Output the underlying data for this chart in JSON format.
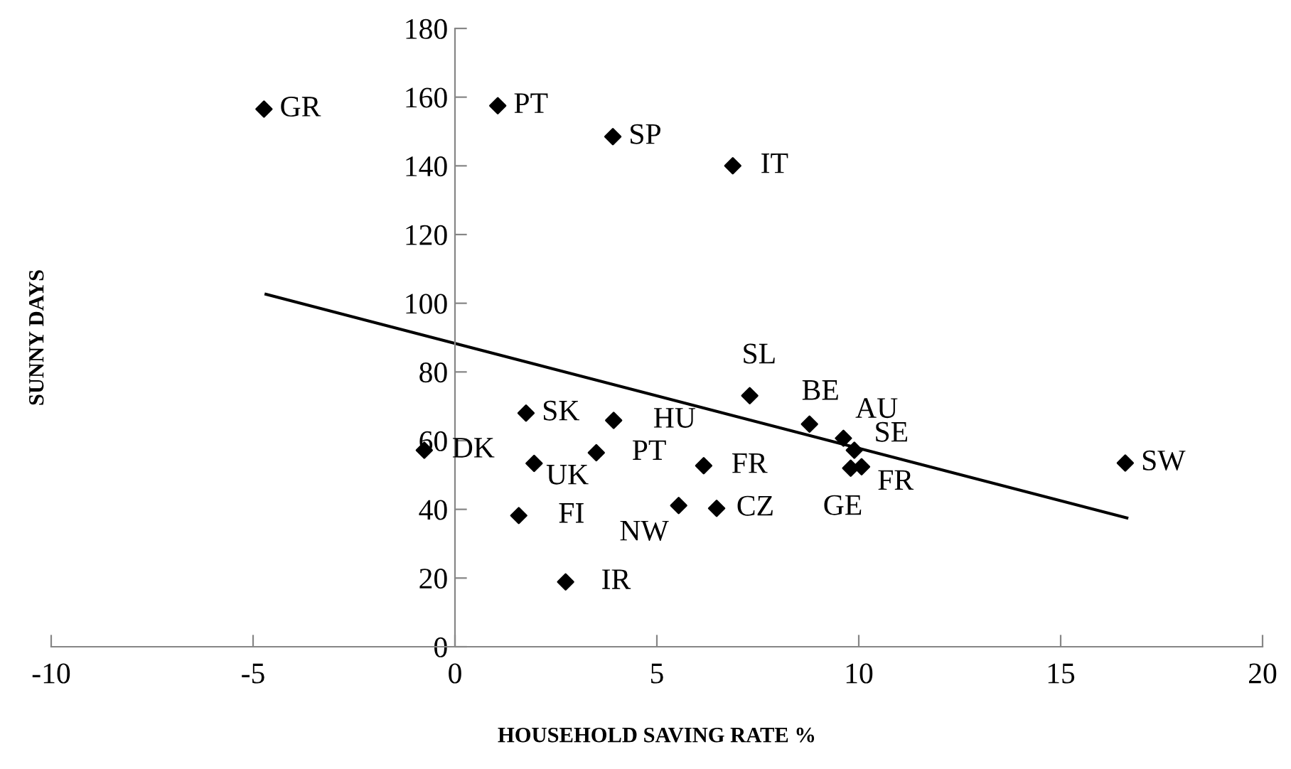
{
  "chart_data": {
    "type": "scatter",
    "xlabel": "HOUSEHOLD SAVING RATE %",
    "ylabel": "SUNNY DAYS",
    "xlim": [
      -10,
      20
    ],
    "xticks": [
      -10,
      -5,
      0,
      5,
      10,
      15,
      20
    ],
    "ylim": [
      0,
      180
    ],
    "yticks": [
      0,
      20,
      40,
      60,
      80,
      100,
      120,
      140,
      160,
      180
    ],
    "grid": false,
    "legend": false,
    "marker": "diamond",
    "series": [
      {
        "color": "#000000",
        "x": [
          -4.73,
          1.06,
          3.91,
          6.88,
          -0.76,
          1.76,
          3.93,
          1.96,
          3.5,
          6.16,
          1.58,
          5.54,
          6.48,
          2.74,
          7.3,
          8.78,
          9.62,
          9.89,
          9.8,
          10.07,
          16.6
        ],
        "values": [
          156.5,
          157.5,
          148.5,
          140,
          57.2,
          68,
          65.9,
          53.4,
          56.5,
          52.7,
          38.2,
          41.1,
          40.3,
          18.9,
          73.1,
          64.8,
          60.7,
          57.2,
          52,
          52.4,
          53.5
        ]
      },
      {
        "type": "line",
        "color": "#000000",
        "marker": "none",
        "line_style": "solid",
        "x": [
          -4.68,
          16.64
        ],
        "values": [
          102.6,
          37.5
        ]
      }
    ],
    "annotations": [
      {
        "text": "GR",
        "x": -4.73,
        "y": 156.5
      },
      {
        "text": "PT",
        "x": 1.06,
        "y": 157.5
      },
      {
        "text": "SP",
        "x": 3.91,
        "y": 148.5
      },
      {
        "text": "IT",
        "x": 6.88,
        "y": 140
      },
      {
        "text": "DK",
        "x": -0.76,
        "y": 57.2
      },
      {
        "text": "SK",
        "x": 1.76,
        "y": 68
      },
      {
        "text": "HU",
        "x": 3.93,
        "y": 65.9
      },
      {
        "text": "UK",
        "x": 1.96,
        "y": 53.4
      },
      {
        "text": "PT",
        "x": 3.5,
        "y": 56.5
      },
      {
        "text": "FR",
        "x": 6.16,
        "y": 52.7
      },
      {
        "text": "FI",
        "x": 1.58,
        "y": 38.2
      },
      {
        "text": "NW",
        "x": 5.54,
        "y": 41.1
      },
      {
        "text": "CZ",
        "x": 6.48,
        "y": 40.3
      },
      {
        "text": "IR",
        "x": 2.74,
        "y": 18.9
      },
      {
        "text": "SL",
        "x": 7.3,
        "y": 73.1
      },
      {
        "text": "BE",
        "x": 8.78,
        "y": 64.8
      },
      {
        "text": "AU",
        "x": 9.62,
        "y": 60.7
      },
      {
        "text": "SE",
        "x": 9.89,
        "y": 57.2
      },
      {
        "text": "GE",
        "x": 9.8,
        "y": 52
      },
      {
        "text": "FR",
        "x": 10.07,
        "y": 52.4
      },
      {
        "text": "SW",
        "x": 16.6,
        "y": 53.5
      }
    ]
  }
}
